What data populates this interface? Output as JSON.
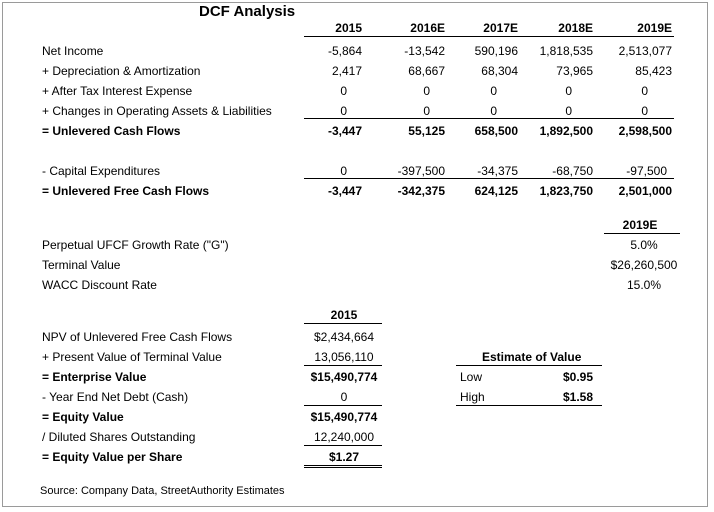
{
  "title": "DCF Analysis",
  "years": [
    "2015",
    "2016E",
    "2017E",
    "2018E",
    "2019E"
  ],
  "rows": [
    {
      "label": "Net Income",
      "values": [
        "-5,864",
        "-13,542",
        "590,196",
        "1,818,535",
        "2,513,077"
      ]
    },
    {
      "label": "+ Depreciation & Amortization",
      "values": [
        "2,417",
        "68,667",
        "68,304",
        "73,965",
        "85,423"
      ]
    },
    {
      "label": "+ After Tax Interest Expense",
      "values": [
        "0",
        "0",
        "0",
        "0",
        "0"
      ]
    },
    {
      "label": "+ Changes in Operating Assets & Liabilities",
      "values": [
        "0",
        "0",
        "0",
        "0",
        "0"
      ]
    },
    {
      "label": "= Unlevered Cash Flows",
      "values": [
        "-3,447",
        "55,125",
        "658,500",
        "1,892,500",
        "2,598,500"
      ]
    },
    {
      "label": "- Capital Expenditures",
      "values": [
        "0",
        "-397,500",
        "-34,375",
        "-68,750",
        "-97,500"
      ]
    },
    {
      "label": "= Unlevered Free Cash Flows",
      "values": [
        "-3,447",
        "-342,375",
        "624,125",
        "1,823,750",
        "2,501,000"
      ]
    }
  ],
  "terminal": {
    "year": "2019E",
    "items": [
      {
        "label": "Perpetual UFCF Growth Rate (\"G\")",
        "value": "5.0%"
      },
      {
        "label": "Terminal Value",
        "value": "$26,260,500"
      },
      {
        "label": "WACC Discount Rate",
        "value": "15.0%"
      }
    ]
  },
  "valuation": {
    "year": "2015",
    "items": [
      {
        "label": "NPV of Unlevered Free Cash Flows",
        "value": "$2,434,664"
      },
      {
        "label": "+ Present Value of Terminal Value",
        "value": "13,056,110"
      },
      {
        "label": "= Enterprise Value",
        "value": "$15,490,774"
      },
      {
        "label": "- Year End Net Debt (Cash)",
        "value": "0"
      },
      {
        "label": "= Equity Value",
        "value": "$15,490,774"
      },
      {
        "label": "/ Diluted Shares Outstanding",
        "value": "12,240,000"
      },
      {
        "label": "= Equity Value per Share",
        "value": "$1.27"
      }
    ]
  },
  "estimate": {
    "title": "Estimate of Value",
    "items": [
      {
        "label": "Low",
        "value": "$0.95"
      },
      {
        "label": "High",
        "value": "$1.58"
      }
    ]
  },
  "source": "Source: Company Data, StreetAuthority Estimates"
}
